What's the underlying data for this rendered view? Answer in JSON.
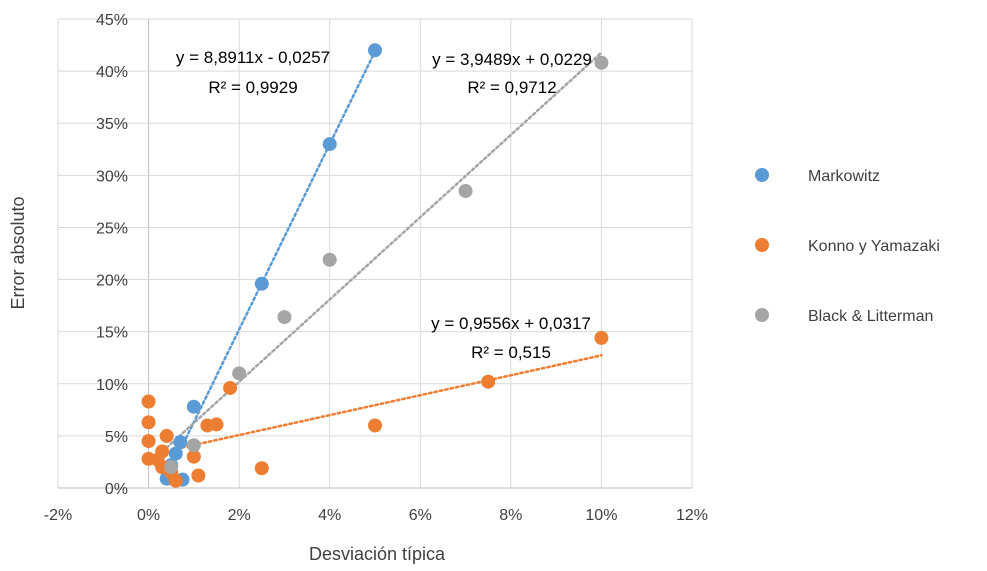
{
  "chart_data": {
    "type": "scatter",
    "xlabel": "Desviación típica",
    "ylabel": "Error absoluto",
    "xlim": [
      -0.02,
      0.12
    ],
    "ylim": [
      0,
      0.45
    ],
    "x_ticks": [
      -0.02,
      0,
      0.02,
      0.04,
      0.06,
      0.08,
      0.1,
      0.12
    ],
    "x_tick_labels": [
      "-2%",
      "0%",
      "2%",
      "4%",
      "6%",
      "8%",
      "10%",
      "12%"
    ],
    "y_ticks": [
      0,
      0.05,
      0.1,
      0.15,
      0.2,
      0.25,
      0.3,
      0.35,
      0.4,
      0.45
    ],
    "y_tick_labels": [
      "0%",
      "5%",
      "10%",
      "15%",
      "20%",
      "25%",
      "30%",
      "35%",
      "40%",
      "45%"
    ],
    "grid": true,
    "legend_position": "right",
    "series": [
      {
        "name": "Markowitz",
        "color": "#5B9BD5",
        "points": [
          [
            0.05,
            0.42
          ],
          [
            0.04,
            0.33
          ],
          [
            0.025,
            0.196
          ],
          [
            0.01,
            0.078
          ],
          [
            0.007,
            0.044
          ],
          [
            0.006,
            0.033
          ],
          [
            0.005,
            0.022
          ],
          [
            0.004,
            0.009
          ],
          [
            0.0075,
            0.008
          ]
        ],
        "trendline": {
          "slope": 8.8911,
          "intercept": -0.0257,
          "x_range": [
            0.004,
            0.05
          ],
          "equation": "y = 8,8911x - 0,0257",
          "r2": "R² = 0,9929"
        }
      },
      {
        "name": "Konno y Yamazaki",
        "color": "#ED7D31",
        "points": [
          [
            0.0,
            0.083
          ],
          [
            0.0,
            0.063
          ],
          [
            0.0,
            0.045
          ],
          [
            0.0,
            0.028
          ],
          [
            0.002,
            0.027
          ],
          [
            0.003,
            0.035
          ],
          [
            0.003,
            0.02
          ],
          [
            0.004,
            0.05
          ],
          [
            0.005,
            0.015
          ],
          [
            0.006,
            0.007
          ],
          [
            0.01,
            0.03
          ],
          [
            0.011,
            0.012
          ],
          [
            0.013,
            0.06
          ],
          [
            0.015,
            0.061
          ],
          [
            0.018,
            0.096
          ],
          [
            0.025,
            0.019
          ],
          [
            0.05,
            0.06
          ],
          [
            0.075,
            0.102
          ],
          [
            0.1,
            0.144
          ]
        ],
        "trendline": {
          "slope": 0.9556,
          "intercept": 0.0317,
          "x_range": [
            0.005,
            0.1
          ],
          "equation": "y = 0,9556x + 0,0317",
          "r2": "R² = 0,515"
        }
      },
      {
        "name": "Black & Litterman",
        "color": "#A5A5A5",
        "points": [
          [
            0.1,
            0.408
          ],
          [
            0.07,
            0.285
          ],
          [
            0.04,
            0.219
          ],
          [
            0.03,
            0.164
          ],
          [
            0.02,
            0.11
          ],
          [
            0.01,
            0.041
          ],
          [
            0.005,
            0.02
          ]
        ],
        "trendline": {
          "slope": 3.9489,
          "intercept": 0.0229,
          "x_range": [
            0.004,
            0.1
          ],
          "equation": "y = 3,9489x + 0,0229",
          "r2": "R² = 0,9712"
        }
      }
    ]
  }
}
